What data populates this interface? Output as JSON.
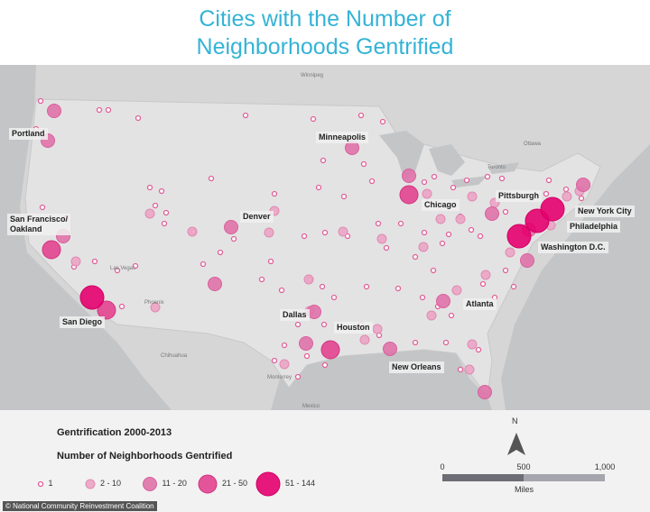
{
  "header": {
    "title": [
      "Cities with the Number of",
      "Neighborhoods Gentrified"
    ]
  },
  "map": {
    "city_labels": [
      "Portland",
      "Minneapolis",
      "Denver",
      "San Francisco/\nOakland",
      "San Diego",
      "Chicago",
      "Pittsburgh",
      "New York City",
      "Philadelphia",
      "Washington D.C.",
      "Atlanta",
      "Dallas",
      "Houston",
      "New Orleans"
    ],
    "place_labels": [
      "Winnipeg",
      "Ottawa",
      "Toronto",
      "Las Vegas",
      "Phoenix",
      "Chihuahua",
      "Monterrey",
      "Mexico"
    ]
  },
  "legend": {
    "title": "Gentrification 2000-2013",
    "subtitle": "Number of Neighborhoods Gentrified",
    "items": [
      "1",
      "2 - 10",
      "11 - 20",
      "21 - 50",
      "51 - 144"
    ]
  },
  "scale": {
    "ticks": [
      "0",
      "500",
      "1,000"
    ],
    "unit": "Miles",
    "north": "N"
  },
  "credit": "© National Community Reinvestment Coalition"
}
